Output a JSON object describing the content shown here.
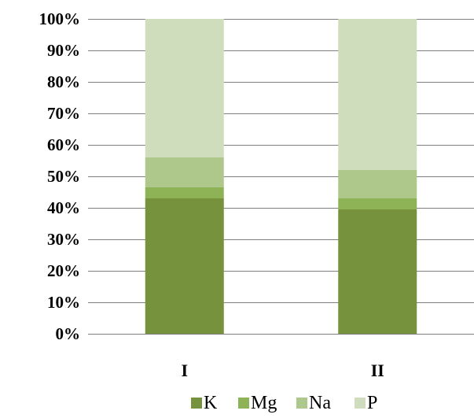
{
  "chart_data": {
    "type": "bar",
    "stacked": true,
    "percent_stacked": true,
    "categories": [
      "I",
      "II"
    ],
    "series": [
      {
        "name": "K",
        "values": [
          43,
          39.5
        ],
        "color": "#76923c"
      },
      {
        "name": "Mg",
        "values": [
          3.5,
          3.5
        ],
        "color": "#8db356"
      },
      {
        "name": "Na",
        "values": [
          9.5,
          9
        ],
        "color": "#adc88a"
      },
      {
        "name": "P",
        "values": [
          44,
          48
        ],
        "color": "#d0ddbd"
      }
    ],
    "yticks": [
      "0%",
      "10%",
      "20%",
      "30%",
      "40%",
      "50%",
      "60%",
      "70%",
      "80%",
      "90%",
      "100%"
    ],
    "ylim": [
      0,
      100
    ],
    "grid": true,
    "legend_position": "bottom"
  }
}
